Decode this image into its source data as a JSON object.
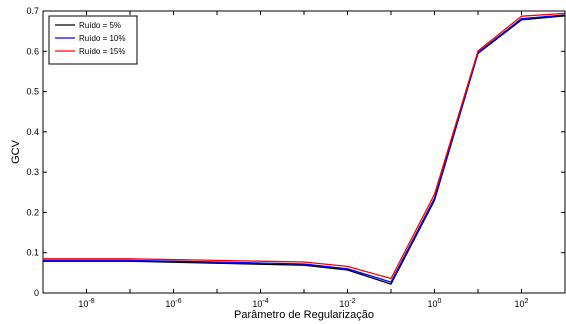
{
  "chart_data": {
    "type": "line",
    "xscale": "log",
    "xlabel": "Parâmetro de Regularização",
    "ylabel": "GCV",
    "xlim": [
      1e-09,
      1000
    ],
    "ylim": [
      0,
      0.7
    ],
    "yticks": [
      0,
      0.1,
      0.2,
      0.3,
      0.4,
      0.5,
      0.6,
      0.7
    ],
    "ytick_labels": [
      "0",
      "0.1",
      "0.2",
      "0.3",
      "0.4",
      "0.5",
      "0.6",
      "0.7"
    ],
    "xticks": [
      {
        "value": 1e-08,
        "base": "10",
        "exp": "-8"
      },
      {
        "value": 1e-06,
        "base": "10",
        "exp": "-6"
      },
      {
        "value": 0.0001,
        "base": "10",
        "exp": "-4"
      },
      {
        "value": 0.01,
        "base": "10",
        "exp": "-2"
      },
      {
        "value": 1,
        "base": "10",
        "exp": "0"
      },
      {
        "value": 100,
        "base": "10",
        "exp": "2"
      }
    ],
    "legend_position": "top-left",
    "grid": false,
    "series": [
      {
        "name": "Ruído = 5%",
        "color": "#000000",
        "x": [
          1e-09,
          1e-07,
          1e-05,
          0.001,
          0.01,
          0.1,
          1,
          10,
          100,
          1000
        ],
        "y": [
          0.079,
          0.079,
          0.074,
          0.069,
          0.057,
          0.022,
          0.23,
          0.595,
          0.678,
          0.688
        ]
      },
      {
        "name": "Ruído = 10%",
        "color": "#0000ff",
        "x": [
          1e-09,
          1e-07,
          1e-05,
          0.001,
          0.01,
          0.1,
          1,
          10,
          100,
          1000
        ],
        "y": [
          0.081,
          0.081,
          0.077,
          0.072,
          0.06,
          0.027,
          0.235,
          0.597,
          0.681,
          0.69
        ]
      },
      {
        "name": "Ruído = 15%",
        "color": "#ff0000",
        "x": [
          1e-09,
          1e-07,
          1e-05,
          0.001,
          0.01,
          0.1,
          1,
          10,
          100,
          1000
        ],
        "y": [
          0.085,
          0.085,
          0.081,
          0.077,
          0.066,
          0.036,
          0.245,
          0.601,
          0.687,
          0.694
        ]
      }
    ]
  }
}
